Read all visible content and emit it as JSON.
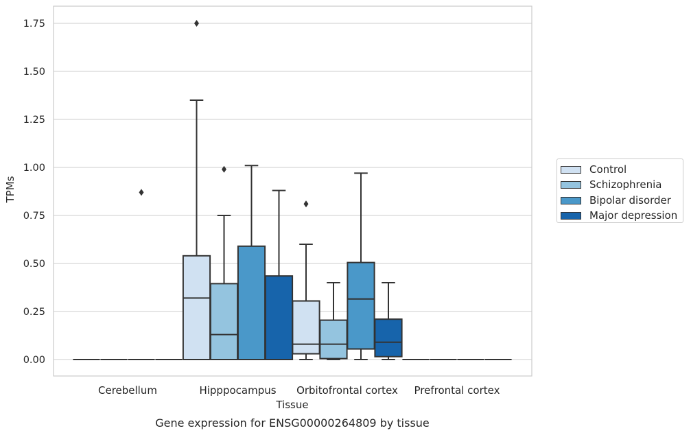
{
  "chart_data": {
    "type": "box",
    "title": "Gene expression for ENSG00000264809 by tissue",
    "xlabel": "Tissue",
    "ylabel": "TPMs",
    "ylim": [
      -0.085,
      1.84
    ],
    "yticks": [
      "0.00",
      "0.25",
      "0.50",
      "0.75",
      "1.00",
      "1.25",
      "1.50",
      "1.75"
    ],
    "ytick_values": [
      0,
      0.25,
      0.5,
      0.75,
      1.0,
      1.25,
      1.5,
      1.75
    ],
    "grid": "horizontal",
    "legend_position": "right",
    "categories": [
      "Cerebellum",
      "Hipppocampus",
      "Orbitofrontal cortex",
      "Prefrontal cortex"
    ],
    "series": [
      {
        "name": "Control",
        "color": "#d0e1f2",
        "boxes": [
          {
            "q1": 0,
            "median": 0,
            "q3": 0,
            "whisker_low": 0,
            "whisker_high": 0,
            "outliers": []
          },
          {
            "q1": 0,
            "median": 0.32,
            "q3": 0.54,
            "whisker_low": 0,
            "whisker_high": 1.35,
            "outliers": [
              1.75
            ]
          },
          {
            "q1": 0.03,
            "median": 0.08,
            "q3": 0.305,
            "whisker_low": 0,
            "whisker_high": 0.6,
            "outliers": [
              0.81
            ]
          },
          {
            "q1": 0,
            "median": 0,
            "q3": 0,
            "whisker_low": 0,
            "whisker_high": 0,
            "outliers": []
          }
        ]
      },
      {
        "name": "Schizophrenia",
        "color": "#94c4df",
        "boxes": [
          {
            "q1": 0,
            "median": 0,
            "q3": 0,
            "whisker_low": 0,
            "whisker_high": 0,
            "outliers": []
          },
          {
            "q1": 0,
            "median": 0.13,
            "q3": 0.395,
            "whisker_low": 0,
            "whisker_high": 0.75,
            "outliers": [
              0.99
            ]
          },
          {
            "q1": 0.005,
            "median": 0.08,
            "q3": 0.205,
            "whisker_low": 0,
            "whisker_high": 0.4,
            "outliers": []
          },
          {
            "q1": 0,
            "median": 0,
            "q3": 0,
            "whisker_low": 0,
            "whisker_high": 0,
            "outliers": []
          }
        ]
      },
      {
        "name": "Bipolar disorder",
        "color": "#4a98c9",
        "boxes": [
          {
            "q1": 0,
            "median": 0,
            "q3": 0,
            "whisker_low": 0,
            "whisker_high": 0,
            "outliers": [
              0.87
            ]
          },
          {
            "q1": 0,
            "median": 0,
            "q3": 0.59,
            "whisker_low": 0,
            "whisker_high": 1.01,
            "outliers": []
          },
          {
            "q1": 0.055,
            "median": 0.315,
            "q3": 0.505,
            "whisker_low": 0,
            "whisker_high": 0.97,
            "outliers": []
          },
          {
            "q1": 0,
            "median": 0,
            "q3": 0,
            "whisker_low": 0,
            "whisker_high": 0,
            "outliers": []
          }
        ]
      },
      {
        "name": "Major depression",
        "color": "#1764ab",
        "boxes": [
          {
            "q1": 0,
            "median": 0,
            "q3": 0,
            "whisker_low": 0,
            "whisker_high": 0,
            "outliers": []
          },
          {
            "q1": 0,
            "median": 0,
            "q3": 0.435,
            "whisker_low": 0,
            "whisker_high": 0.88,
            "outliers": []
          },
          {
            "q1": 0.015,
            "median": 0.09,
            "q3": 0.21,
            "whisker_low": 0,
            "whisker_high": 0.4,
            "outliers": []
          },
          {
            "q1": 0,
            "median": 0,
            "q3": 0,
            "whisker_low": 0,
            "whisker_high": 0,
            "outliers": []
          }
        ]
      }
    ]
  }
}
